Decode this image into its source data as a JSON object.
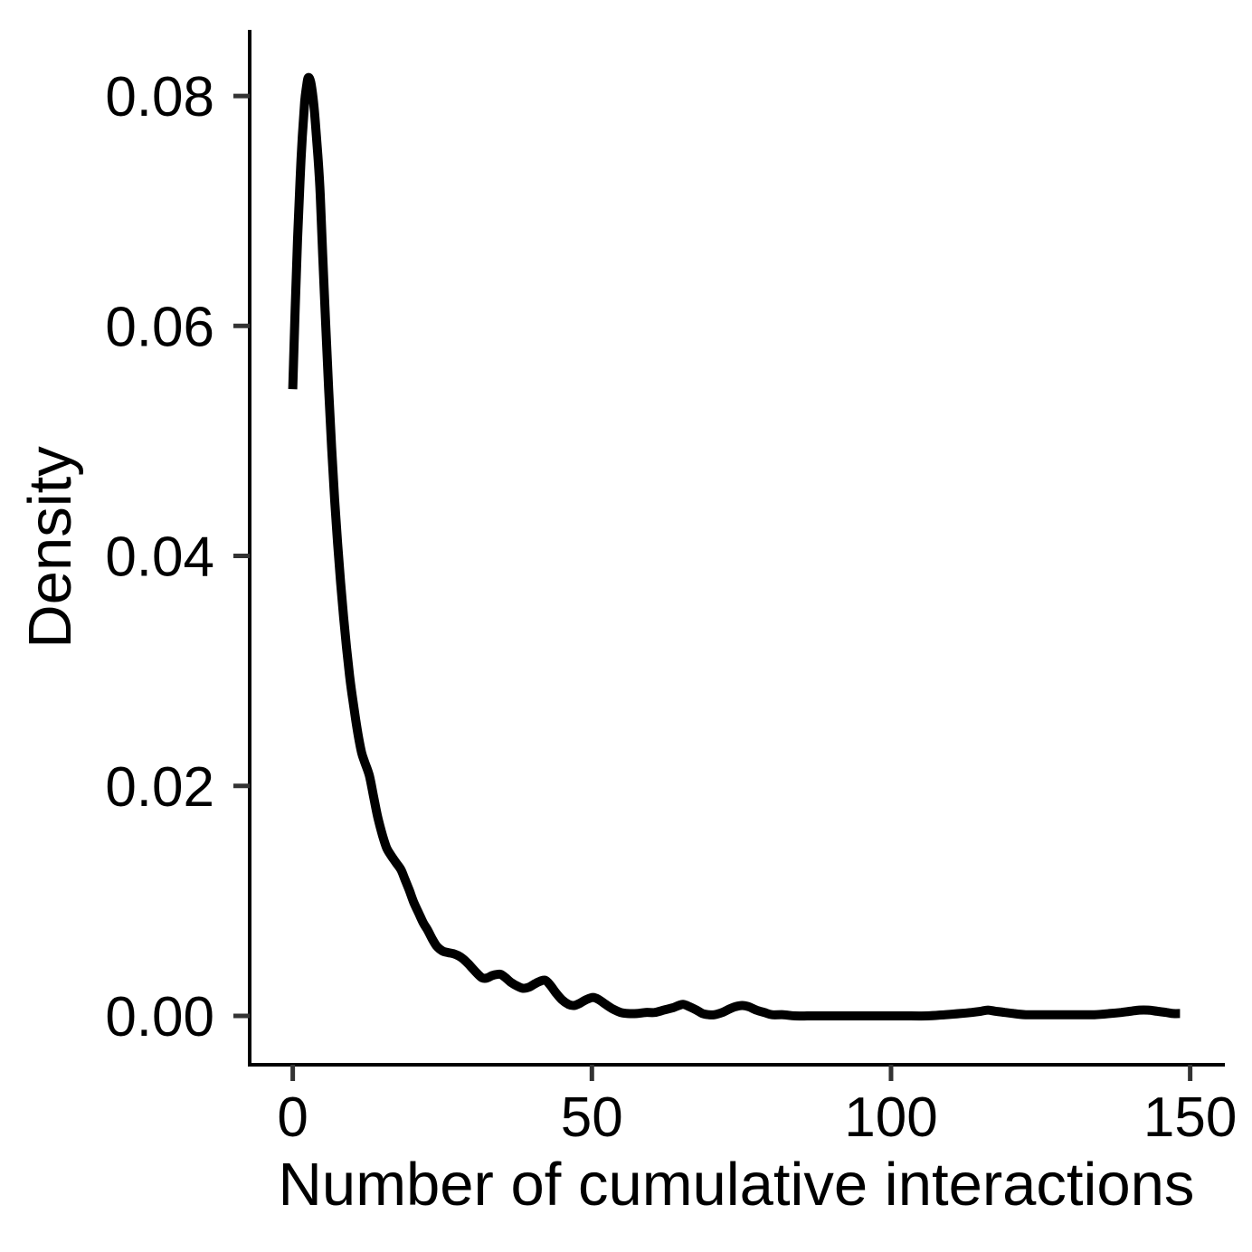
{
  "figure": {
    "background": "#ffffff"
  },
  "chart_data": {
    "type": "line",
    "title": "",
    "xlabel": "Number of cumulative interactions",
    "ylabel": "Density",
    "legend": "none",
    "grid": false,
    "x_ticks": {
      "values": [
        0,
        50,
        100,
        150
      ],
      "labels": [
        "0",
        "50",
        "100",
        "150"
      ]
    },
    "y_ticks": {
      "values": [
        0,
        0.02,
        0.04,
        0.06,
        0.08
      ],
      "labels": [
        "0.00",
        "0.02",
        "0.04",
        "0.06",
        "0.08"
      ]
    },
    "xlim": [
      -7.2,
      155.8
    ],
    "ylim": [
      -0.00425,
      0.08575
    ],
    "style": {
      "line_color": "#000000",
      "line_width": 10,
      "axis_color": "#000000",
      "axis_width": 4,
      "tick_color": "#333333",
      "tick_width": 5,
      "tick_length": 18,
      "text_color": "#000000",
      "background": "#ffffff"
    },
    "series": [
      {
        "name": "density",
        "points": [
          [
            0,
            0.0545
          ],
          [
            0.4,
            0.0615
          ],
          [
            0.8,
            0.0675
          ],
          [
            1.2,
            0.0725
          ],
          [
            1.6,
            0.0765
          ],
          [
            2.0,
            0.0795
          ],
          [
            2.3,
            0.0808
          ],
          [
            2.6,
            0.0816
          ],
          [
            3.0,
            0.0812
          ],
          [
            3.4,
            0.0798
          ],
          [
            3.8,
            0.0776
          ],
          [
            4.2,
            0.0748
          ],
          [
            4.6,
            0.0714
          ],
          [
            5.0,
            0.0662
          ],
          [
            5.5,
            0.0602
          ],
          [
            6.0,
            0.0545
          ],
          [
            6.5,
            0.0494
          ],
          [
            7.0,
            0.0449
          ],
          [
            7.5,
            0.0411
          ],
          [
            8.0,
            0.0377
          ],
          [
            8.5,
            0.0347
          ],
          [
            9.0,
            0.032
          ],
          [
            9.5,
            0.0296
          ],
          [
            10.0,
            0.0276
          ],
          [
            10.5,
            0.0258
          ],
          [
            11.0,
            0.0242
          ],
          [
            11.5,
            0.0229
          ],
          [
            12.0,
            0.0221
          ],
          [
            12.8,
            0.0209
          ],
          [
            13.5,
            0.0191
          ],
          [
            14.2,
            0.0173
          ],
          [
            15.0,
            0.0157
          ],
          [
            15.7,
            0.0146
          ],
          [
            16.5,
            0.0139
          ],
          [
            17.3,
            0.0133
          ],
          [
            18.1,
            0.0127
          ],
          [
            18.8,
            0.0118
          ],
          [
            19.5,
            0.0109
          ],
          [
            20.2,
            0.0099
          ],
          [
            21.0,
            0.009
          ],
          [
            21.8,
            0.0081
          ],
          [
            22.5,
            0.0075
          ],
          [
            23.3,
            0.0067
          ],
          [
            24.0,
            0.0061
          ],
          [
            24.6,
            0.0058
          ],
          [
            25.2,
            0.0056
          ],
          [
            26.0,
            0.0055
          ],
          [
            26.9,
            0.0054
          ],
          [
            27.8,
            0.0052
          ],
          [
            28.6,
            0.0049
          ],
          [
            29.4,
            0.0045
          ],
          [
            30.1,
            0.0041
          ],
          [
            31.0,
            0.0036
          ],
          [
            31.7,
            0.0033
          ],
          [
            32.5,
            0.0033
          ],
          [
            33.3,
            0.0035
          ],
          [
            34.1,
            0.0036
          ],
          [
            34.8,
            0.0036
          ],
          [
            35.6,
            0.0033
          ],
          [
            36.5,
            0.0029
          ],
          [
            37.5,
            0.0026
          ],
          [
            38.5,
            0.0024
          ],
          [
            39.5,
            0.0025
          ],
          [
            40.5,
            0.0028
          ],
          [
            41.3,
            0.003
          ],
          [
            42.2,
            0.0031
          ],
          [
            43.0,
            0.0027
          ],
          [
            44.0,
            0.002
          ],
          [
            45.0,
            0.0014
          ],
          [
            46.1,
            0.001
          ],
          [
            47.0,
            0.0009
          ],
          [
            48.0,
            0.0011
          ],
          [
            49.0,
            0.0014
          ],
          [
            50.2,
            0.0016
          ],
          [
            51.2,
            0.0014
          ],
          [
            52.3,
            0.001
          ],
          [
            53.5,
            0.0006
          ],
          [
            54.8,
            0.0003
          ],
          [
            56.0,
            0.0002
          ],
          [
            57.5,
            0.0002
          ],
          [
            59.0,
            0.0003
          ],
          [
            60.5,
            0.0003
          ],
          [
            62.0,
            0.0005
          ],
          [
            63.5,
            0.0007
          ],
          [
            64.5,
            0.0009
          ],
          [
            65.3,
            0.001
          ],
          [
            66.3,
            0.0008
          ],
          [
            67.5,
            0.0005
          ],
          [
            68.5,
            0.0002
          ],
          [
            69.5,
            0.0001
          ],
          [
            70.5,
            0.0001
          ],
          [
            71.8,
            0.0003
          ],
          [
            73.0,
            0.0006
          ],
          [
            74.0,
            0.0008
          ],
          [
            75.1,
            0.0009
          ],
          [
            76.2,
            0.0008
          ],
          [
            77.5,
            0.0005
          ],
          [
            78.8,
            0.0003
          ],
          [
            80.1,
            0.0001
          ],
          [
            82.0,
            0.0001
          ],
          [
            84.0,
            0.0
          ],
          [
            87.0,
            0.0
          ],
          [
            90.0,
            0.0
          ],
          [
            94.0,
            0.0
          ],
          [
            98.0,
            0.0
          ],
          [
            102.0,
            0.0
          ],
          [
            106.0,
            0.0
          ],
          [
            109.0,
            0.0001
          ],
          [
            111.5,
            0.0002
          ],
          [
            113.5,
            0.0003
          ],
          [
            115.0,
            0.0004
          ],
          [
            116.2,
            0.0005
          ],
          [
            117.5,
            0.0004
          ],
          [
            119.0,
            0.0003
          ],
          [
            120.5,
            0.0002
          ],
          [
            122.5,
            0.0001
          ],
          [
            125.0,
            0.0001
          ],
          [
            128.0,
            0.0001
          ],
          [
            131.0,
            0.0001
          ],
          [
            134.0,
            0.0001
          ],
          [
            136.5,
            0.0002
          ],
          [
            138.5,
            0.0003
          ],
          [
            140.0,
            0.0004
          ],
          [
            141.5,
            0.0005
          ],
          [
            143.0,
            0.0005
          ],
          [
            144.5,
            0.0004
          ],
          [
            146.0,
            0.0003
          ],
          [
            147.2,
            0.0002
          ],
          [
            148.3,
            0.0002
          ]
        ]
      }
    ]
  }
}
